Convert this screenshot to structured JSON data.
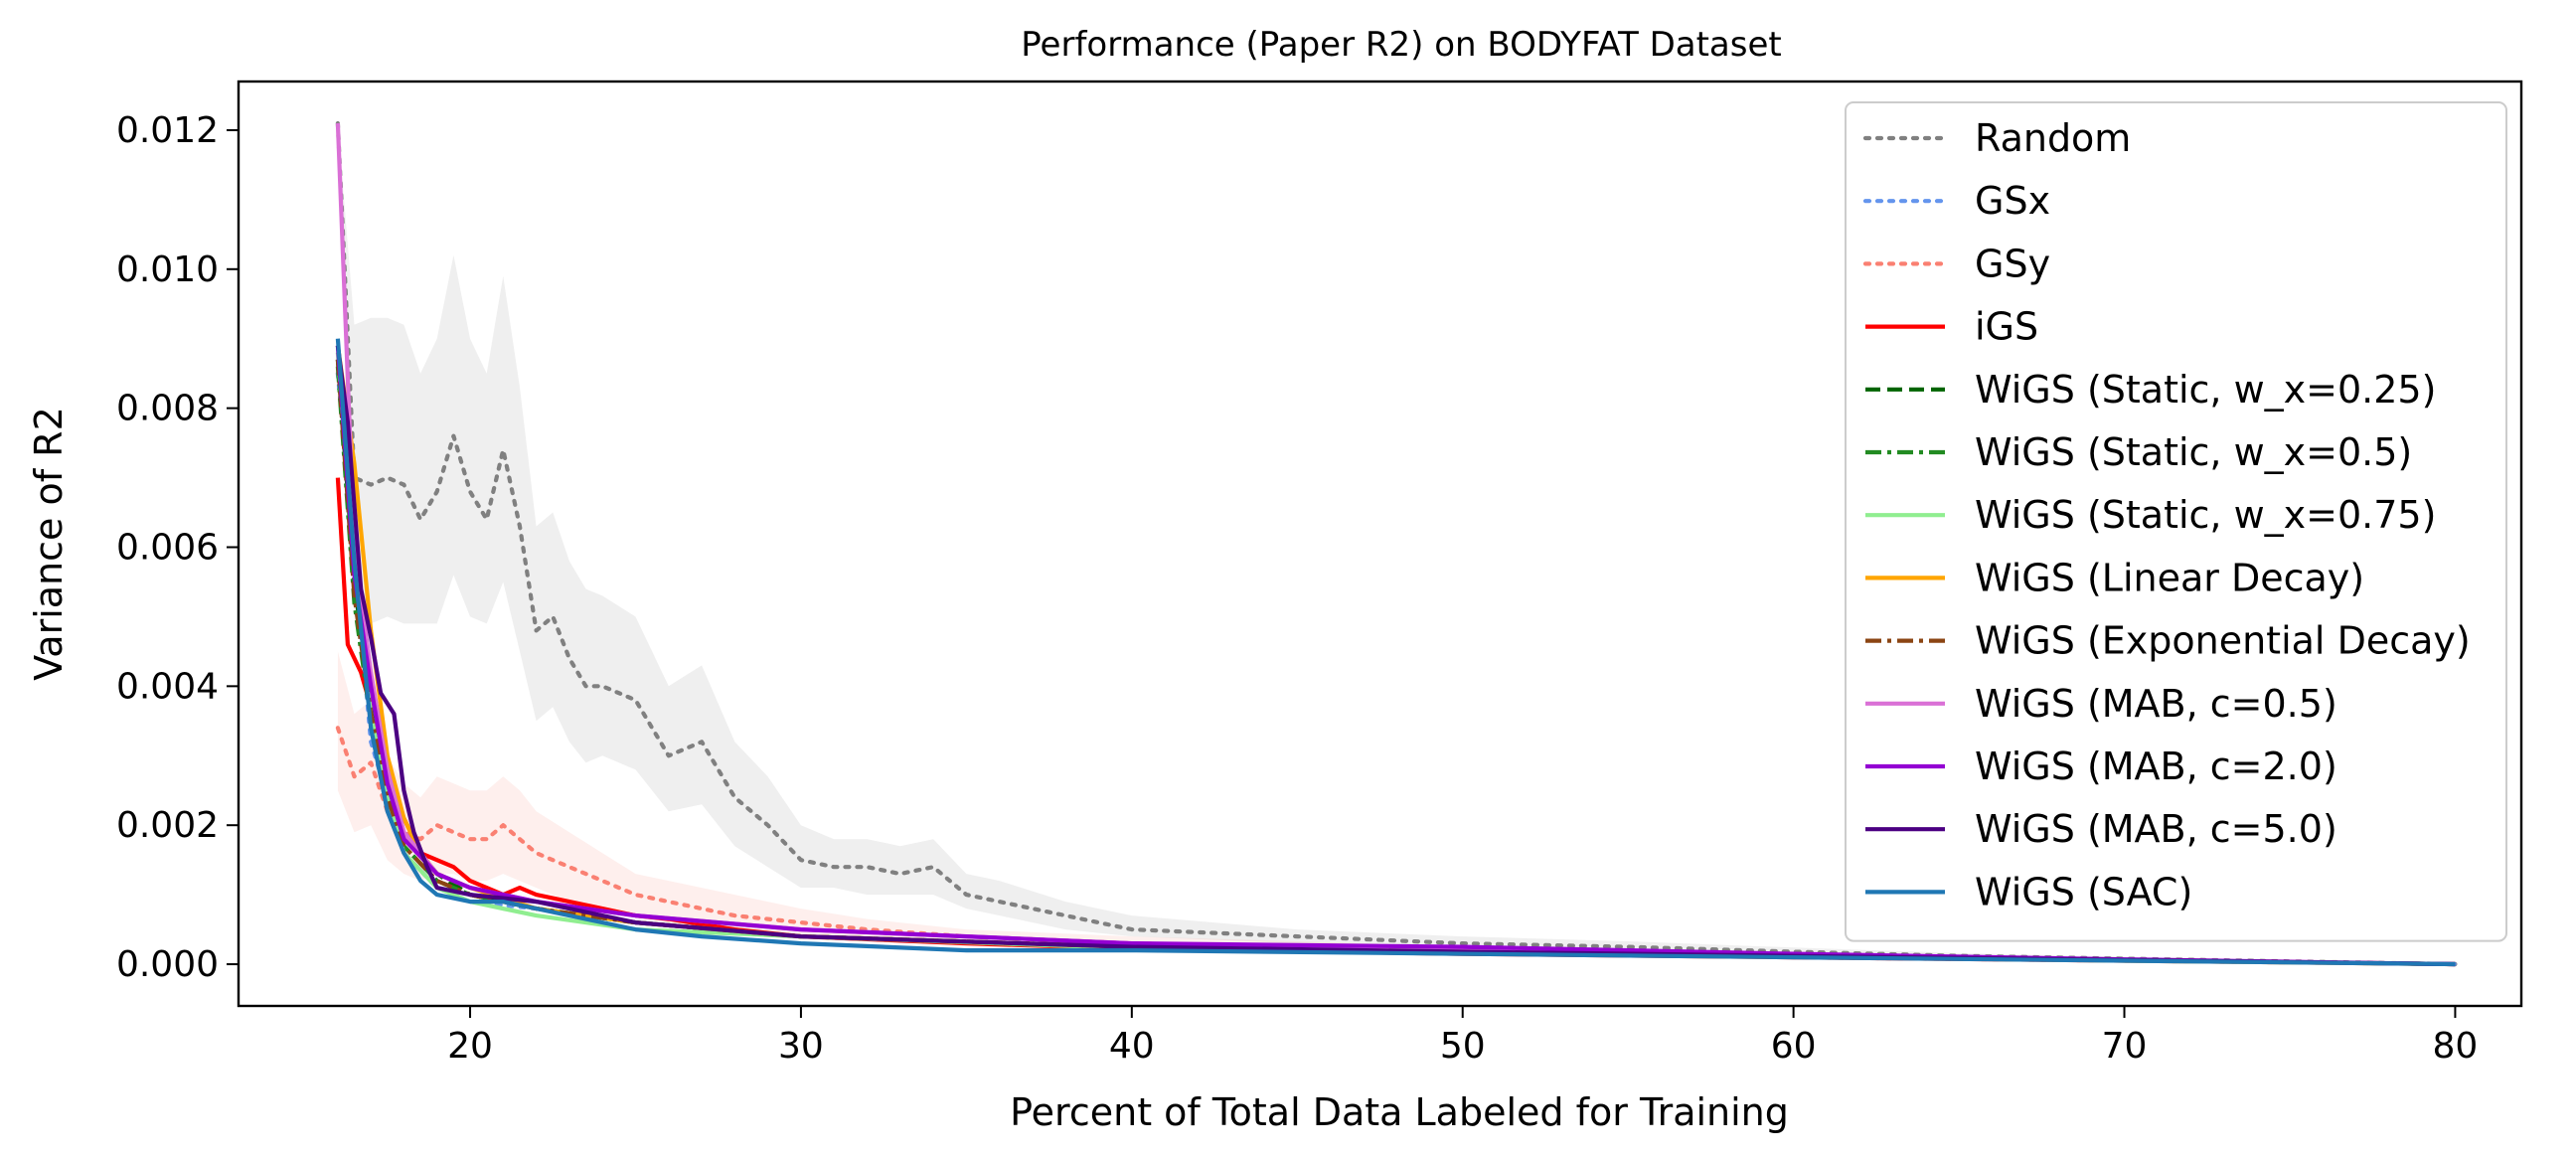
{
  "chart_data": {
    "type": "line",
    "title": "Performance (Paper R2) on BODYFAT Dataset",
    "xlabel": "Percent of Total Data Labeled for Training",
    "ylabel": "Variance of R2",
    "xlim": [
      13,
      82
    ],
    "ylim": [
      -0.0006,
      0.0127
    ],
    "xticks": [
      20,
      30,
      40,
      50,
      60,
      70,
      80
    ],
    "xtick_labels": [
      "20",
      "30",
      "40",
      "50",
      "60",
      "70",
      "80"
    ],
    "yticks": [
      0.0,
      0.002,
      0.004,
      0.006,
      0.008,
      0.01,
      0.012
    ],
    "ytick_labels": [
      "0.000",
      "0.002",
      "0.004",
      "0.006",
      "0.008",
      "0.010",
      "0.012"
    ],
    "grid": false,
    "legend_position": "top-right",
    "series": [
      {
        "name": "Random",
        "color": "#808080",
        "style": "dotted",
        "band": true,
        "x": [
          16,
          16.5,
          17,
          17.5,
          18,
          18.5,
          19,
          19.5,
          20,
          20.5,
          21,
          21.5,
          22,
          22.5,
          23,
          23.5,
          24,
          25,
          26,
          27,
          28,
          29,
          30,
          31,
          32,
          33,
          34,
          35,
          36,
          38,
          40,
          45,
          50,
          55,
          60,
          65,
          70,
          75,
          80
        ],
        "y": [
          0.0121,
          0.007,
          0.0069,
          0.007,
          0.0069,
          0.0064,
          0.0068,
          0.0076,
          0.0068,
          0.0064,
          0.0074,
          0.0063,
          0.0048,
          0.005,
          0.0044,
          0.004,
          0.004,
          0.0038,
          0.003,
          0.0032,
          0.0024,
          0.002,
          0.0015,
          0.0014,
          0.0014,
          0.0013,
          0.0014,
          0.001,
          0.0009,
          0.0007,
          0.0005,
          0.0004,
          0.0003,
          0.00025,
          0.00018,
          0.00012,
          8e-05,
          4e-05,
          0.0
        ],
        "lower": [
          0.0121,
          0.005,
          0.0049,
          0.005,
          0.0049,
          0.0049,
          0.0049,
          0.0056,
          0.005,
          0.0049,
          0.0055,
          0.0045,
          0.0035,
          0.0037,
          0.0032,
          0.0029,
          0.003,
          0.0028,
          0.0022,
          0.0023,
          0.0017,
          0.0014,
          0.0011,
          0.0011,
          0.001,
          0.001,
          0.001,
          0.0008,
          0.0007,
          0.0005,
          0.0004,
          0.0003,
          0.00022,
          0.00018,
          0.00013,
          9e-05,
          6e-05,
          3e-05,
          0.0
        ],
        "upper": [
          0.0121,
          0.0092,
          0.0093,
          0.0093,
          0.0092,
          0.0085,
          0.009,
          0.0102,
          0.009,
          0.0085,
          0.0099,
          0.0083,
          0.0063,
          0.0065,
          0.0058,
          0.0054,
          0.0053,
          0.005,
          0.004,
          0.0043,
          0.0032,
          0.0027,
          0.002,
          0.0018,
          0.0018,
          0.0017,
          0.0018,
          0.0013,
          0.0012,
          0.0009,
          0.0007,
          0.0005,
          0.0004,
          0.00033,
          0.00024,
          0.00016,
          0.00011,
          6e-05,
          0.0
        ]
      },
      {
        "name": "GSx",
        "color": "#6495ED",
        "style": "dotted",
        "band": false,
        "x": [
          16,
          17,
          18,
          19,
          20,
          22,
          25,
          30,
          40,
          50,
          60,
          70,
          80
        ],
        "y": [
          0.0085,
          0.0032,
          0.0016,
          0.0011,
          0.0009,
          0.0008,
          0.0006,
          0.0004,
          0.00025,
          0.0002,
          0.00012,
          6e-05,
          0.0
        ]
      },
      {
        "name": "GSy",
        "color": "#FA8072",
        "style": "dotted",
        "band": true,
        "x": [
          16,
          16.5,
          17,
          17.5,
          18,
          18.5,
          19,
          19.5,
          20,
          20.5,
          21,
          21.5,
          22,
          23,
          24,
          25,
          26,
          27,
          28,
          30,
          32,
          35,
          40,
          45,
          50,
          55,
          60,
          70,
          80
        ],
        "y": [
          0.0034,
          0.0027,
          0.0029,
          0.0022,
          0.0019,
          0.0018,
          0.002,
          0.0019,
          0.0018,
          0.0018,
          0.002,
          0.0018,
          0.0016,
          0.0014,
          0.0012,
          0.001,
          0.0009,
          0.0008,
          0.0007,
          0.0006,
          0.0005,
          0.0004,
          0.0003,
          0.00025,
          0.0002,
          0.00015,
          0.0001,
          5e-05,
          0.0
        ],
        "lower": [
          0.0025,
          0.0019,
          0.002,
          0.0015,
          0.0013,
          0.0012,
          0.0013,
          0.0013,
          0.0012,
          0.0012,
          0.0013,
          0.0012,
          0.0011,
          0.0009,
          0.0008,
          0.0007,
          0.0006,
          0.0005,
          0.0005,
          0.0004,
          0.00035,
          0.0003,
          0.0002,
          0.00017,
          0.00014,
          0.0001,
          7e-05,
          3e-05,
          0.0
        ],
        "upper": [
          0.0045,
          0.0036,
          0.0038,
          0.003,
          0.0026,
          0.0024,
          0.0027,
          0.0026,
          0.0025,
          0.0025,
          0.0027,
          0.0025,
          0.0022,
          0.0019,
          0.0016,
          0.0013,
          0.0012,
          0.0011,
          0.001,
          0.0008,
          0.00065,
          0.0005,
          0.0004,
          0.00033,
          0.00026,
          0.0002,
          0.00014,
          7e-05,
          0.0
        ]
      },
      {
        "name": "iGS",
        "color": "#FF0000",
        "style": "solid",
        "band": false,
        "x": [
          16,
          16.3,
          16.7,
          17,
          17.5,
          18,
          18.5,
          19,
          19.5,
          20,
          20.5,
          21,
          21.5,
          22,
          23,
          24,
          25,
          26,
          28,
          30,
          35,
          40,
          50,
          60,
          70,
          80
        ],
        "y": [
          0.007,
          0.0046,
          0.0042,
          0.0037,
          0.0024,
          0.0021,
          0.0016,
          0.0015,
          0.0014,
          0.0012,
          0.0011,
          0.001,
          0.0011,
          0.001,
          0.0009,
          0.0008,
          0.0007,
          0.00065,
          0.0005,
          0.0004,
          0.0003,
          0.00022,
          0.00015,
          0.0001,
          5e-05,
          0.0
        ]
      },
      {
        "name": "WiGS (Static, w_x=0.25)",
        "color": "#006400",
        "style": "dashed",
        "band": false,
        "x": [
          16,
          16.5,
          17,
          17.5,
          18,
          19,
          20,
          22,
          25,
          30,
          40,
          50,
          60,
          70,
          80
        ],
        "y": [
          0.0087,
          0.0055,
          0.0037,
          0.0025,
          0.0019,
          0.0013,
          0.001,
          0.0008,
          0.0006,
          0.0004,
          0.00025,
          0.00018,
          0.00012,
          6e-05,
          0.0
        ]
      },
      {
        "name": "WiGS (Static, w_x=0.5)",
        "color": "#228B22",
        "style": "dashdot",
        "band": false,
        "x": [
          16,
          16.5,
          17,
          17.5,
          18,
          19,
          20,
          22,
          25,
          30,
          40,
          50,
          60,
          70,
          80
        ],
        "y": [
          0.0086,
          0.0052,
          0.0035,
          0.0024,
          0.0017,
          0.0012,
          0.001,
          0.0008,
          0.0006,
          0.0004,
          0.00025,
          0.00018,
          0.00012,
          6e-05,
          0.0
        ]
      },
      {
        "name": "WiGS (Static, w_x=0.75)",
        "color": "#90EE90",
        "style": "solid",
        "band": false,
        "x": [
          16,
          16.5,
          17,
          17.5,
          18,
          19,
          20,
          22,
          25,
          30,
          40,
          50,
          60,
          70,
          80
        ],
        "y": [
          0.0088,
          0.0058,
          0.0036,
          0.0024,
          0.0016,
          0.0011,
          0.0009,
          0.0007,
          0.0005,
          0.0004,
          0.00023,
          0.00017,
          0.00011,
          5e-05,
          0.0
        ]
      },
      {
        "name": "WiGS (Linear Decay)",
        "color": "#FFA500",
        "style": "solid",
        "band": false,
        "x": [
          16,
          16.5,
          17,
          17.5,
          18,
          18.5,
          19,
          20,
          22,
          25,
          30,
          40,
          50,
          60,
          70,
          80
        ],
        "y": [
          0.0089,
          0.0072,
          0.0048,
          0.003,
          0.0021,
          0.0016,
          0.0013,
          0.0011,
          0.0008,
          0.0006,
          0.0004,
          0.00025,
          0.00018,
          0.00012,
          6e-05,
          0.0
        ]
      },
      {
        "name": "WiGS (Exponential Decay)",
        "color": "#8B4513",
        "style": "dashdot",
        "band": false,
        "x": [
          16,
          16.5,
          17,
          17.5,
          18,
          19,
          20,
          22,
          25,
          30,
          40,
          50,
          60,
          70,
          80
        ],
        "y": [
          0.0087,
          0.0053,
          0.0036,
          0.0024,
          0.0017,
          0.0012,
          0.001,
          0.0008,
          0.0006,
          0.0004,
          0.00025,
          0.00018,
          0.00012,
          6e-05,
          0.0
        ]
      },
      {
        "name": "WiGS (MAB, c=0.5)",
        "color": "#DA70D6",
        "style": "solid",
        "band": false,
        "x": [
          16,
          16.5,
          17,
          17.5,
          18,
          19,
          20,
          22,
          25,
          30,
          40,
          50,
          60,
          70,
          80
        ],
        "y": [
          0.0121,
          0.006,
          0.0042,
          0.0028,
          0.0019,
          0.0013,
          0.0011,
          0.0009,
          0.0007,
          0.0005,
          0.0003,
          0.0002,
          0.00013,
          6e-05,
          0.0
        ]
      },
      {
        "name": "WiGS (MAB, c=2.0)",
        "color": "#9400D3",
        "style": "solid",
        "band": false,
        "x": [
          16,
          16.5,
          17,
          17.5,
          18,
          19,
          20,
          22,
          25,
          30,
          40,
          50,
          60,
          70,
          80
        ],
        "y": [
          0.0089,
          0.0056,
          0.004,
          0.0026,
          0.0018,
          0.0013,
          0.0011,
          0.0009,
          0.0007,
          0.0005,
          0.0003,
          0.00025,
          0.00015,
          7e-05,
          0.0
        ]
      },
      {
        "name": "WiGS (MAB, c=5.0)",
        "color": "#4B0082",
        "style": "solid",
        "band": false,
        "x": [
          16,
          16.3,
          16.7,
          17,
          17.3,
          17.7,
          18,
          18.3,
          18.7,
          19,
          20,
          22,
          25,
          30,
          40,
          50,
          60,
          70,
          80
        ],
        "y": [
          0.0089,
          0.0078,
          0.0054,
          0.0047,
          0.0039,
          0.0036,
          0.0025,
          0.0019,
          0.0014,
          0.0011,
          0.001,
          0.0009,
          0.0006,
          0.0004,
          0.00025,
          0.00018,
          0.00012,
          6e-05,
          0.0
        ]
      },
      {
        "name": "WiGS (SAC)",
        "color": "#1F77B4",
        "style": "solid",
        "band": false,
        "x": [
          16,
          16.5,
          17,
          17.5,
          18,
          18.5,
          19,
          20,
          21,
          22,
          23,
          25,
          27,
          30,
          35,
          40,
          50,
          60,
          70,
          80
        ],
        "y": [
          0.009,
          0.0058,
          0.0034,
          0.0022,
          0.0016,
          0.0012,
          0.001,
          0.0009,
          0.0009,
          0.0008,
          0.0007,
          0.0005,
          0.0004,
          0.0003,
          0.0002,
          0.0002,
          0.00015,
          0.0001,
          5e-05,
          0.0
        ]
      }
    ]
  }
}
